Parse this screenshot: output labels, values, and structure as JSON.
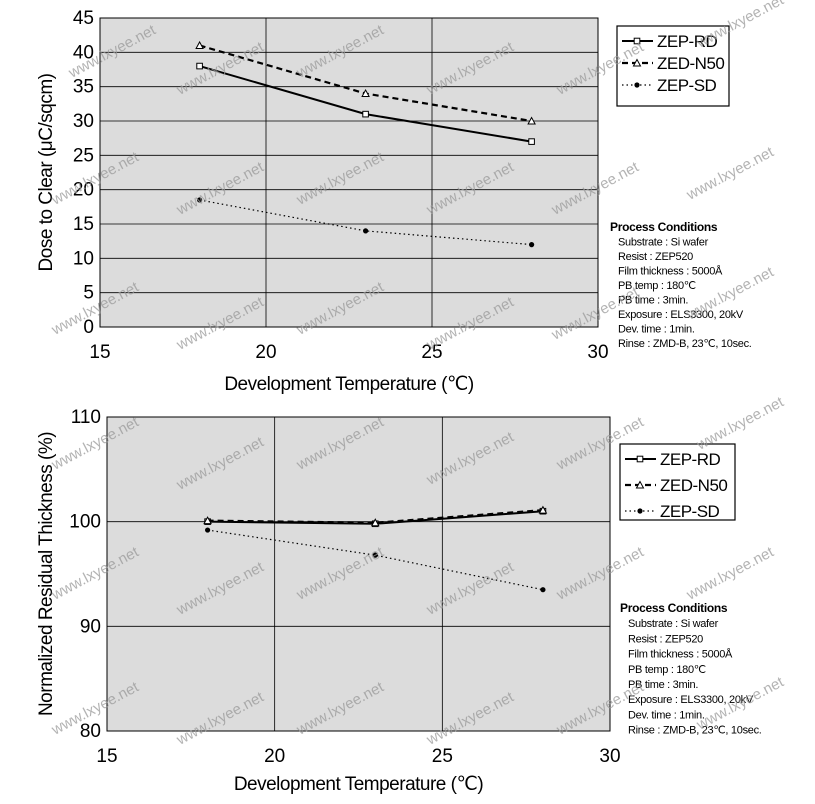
{
  "watermark": "www.lxyee.net",
  "colors": {
    "plot_bg": "#dcdcdc",
    "grid": "#000000",
    "line": "#000000",
    "watermark": "#9a9a9a"
  },
  "chart_data": [
    {
      "type": "line",
      "xlabel": "Development Temperature (℃)",
      "ylabel": "Dose to Clear (μC/sqcm)",
      "xlim": [
        15,
        30
      ],
      "ylim": [
        0,
        45
      ],
      "xticks": [
        15,
        20,
        25,
        30
      ],
      "yticks": [
        0,
        5,
        10,
        15,
        20,
        25,
        30,
        35,
        40,
        45
      ],
      "grid": true,
      "legend_position": "top-right",
      "x": [
        18,
        23,
        28
      ],
      "series": [
        {
          "name": "ZEP-RD",
          "values": [
            38,
            31,
            27
          ],
          "style": "solid",
          "marker": "square"
        },
        {
          "name": "ZED-N50",
          "values": [
            41,
            34,
            30
          ],
          "style": "dashed",
          "marker": "triangle"
        },
        {
          "name": "ZEP-SD",
          "values": [
            18.5,
            14,
            12
          ],
          "style": "dotted",
          "marker": "dot"
        }
      ],
      "conditions_title": "Process Conditions",
      "conditions": [
        "Substrate : Si wafer",
        "Resist : ZEP520",
        "Film thickness : 5000Å",
        "PB temp : 180℃",
        "PB time : 3min.",
        "Exposure : ELS3300, 20kV",
        "Dev. time : 1min.",
        "Rinse : ZMD-B, 23℃, 10sec."
      ]
    },
    {
      "type": "line",
      "xlabel": "Development Temperature (℃)",
      "ylabel": "Normalized Residual Thickness (%)",
      "xlim": [
        15,
        30
      ],
      "ylim": [
        80,
        110
      ],
      "xticks": [
        15,
        20,
        25,
        30
      ],
      "yticks": [
        80,
        90,
        100,
        110
      ],
      "grid": true,
      "legend_position": "top-right",
      "x": [
        18,
        23,
        28
      ],
      "series": [
        {
          "name": "ZEP-RD",
          "values": [
            100,
            99.8,
            101
          ],
          "style": "solid",
          "marker": "square"
        },
        {
          "name": "ZED-N50",
          "values": [
            100.1,
            99.9,
            101.1
          ],
          "style": "dashed",
          "marker": "triangle"
        },
        {
          "name": "ZEP-SD",
          "values": [
            99.2,
            96.8,
            93.5
          ],
          "style": "dotted",
          "marker": "dot"
        }
      ],
      "conditions_title": "Process Conditions",
      "conditions": [
        "Substrate : Si wafer",
        "Resist : ZEP520",
        "Film thickness : 5000Å",
        "PB temp : 180℃",
        "PB time : 3min.",
        "Exposure : ELS3300, 20kV",
        "Dev. time : 1min.",
        "Rinse : ZMD-B, 23℃, 10sec."
      ]
    }
  ]
}
